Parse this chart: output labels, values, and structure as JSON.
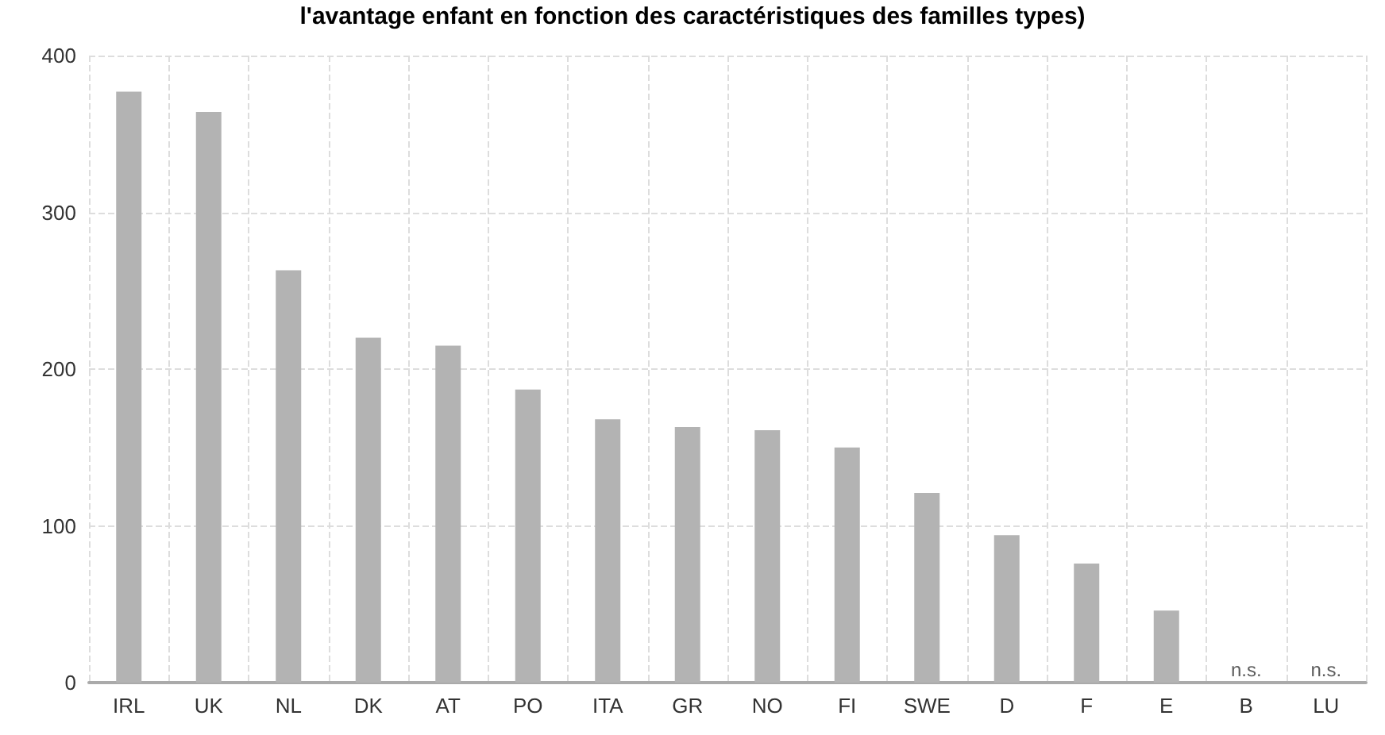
{
  "chart_data": {
    "type": "bar",
    "title": "l'avantage enfant en fonction des caractéristiques des familles types)",
    "categories": [
      "IRL",
      "UK",
      "NL",
      "DK",
      "AT",
      "PO",
      "ITA",
      "GR",
      "NO",
      "FI",
      "SWE",
      "D",
      "F",
      "E",
      "B",
      "LU"
    ],
    "values": [
      377,
      364,
      263,
      220,
      215,
      187,
      168,
      163,
      161,
      150,
      121,
      94,
      76,
      46,
      null,
      null
    ],
    "value_labels": [
      null,
      null,
      null,
      null,
      null,
      null,
      null,
      null,
      null,
      null,
      null,
      null,
      null,
      null,
      "n.s.",
      "n.s."
    ],
    "color": "#b3b3b3",
    "ylim": [
      0,
      400
    ],
    "yticks": [
      0,
      100,
      200,
      300,
      400
    ],
    "grid": true
  }
}
